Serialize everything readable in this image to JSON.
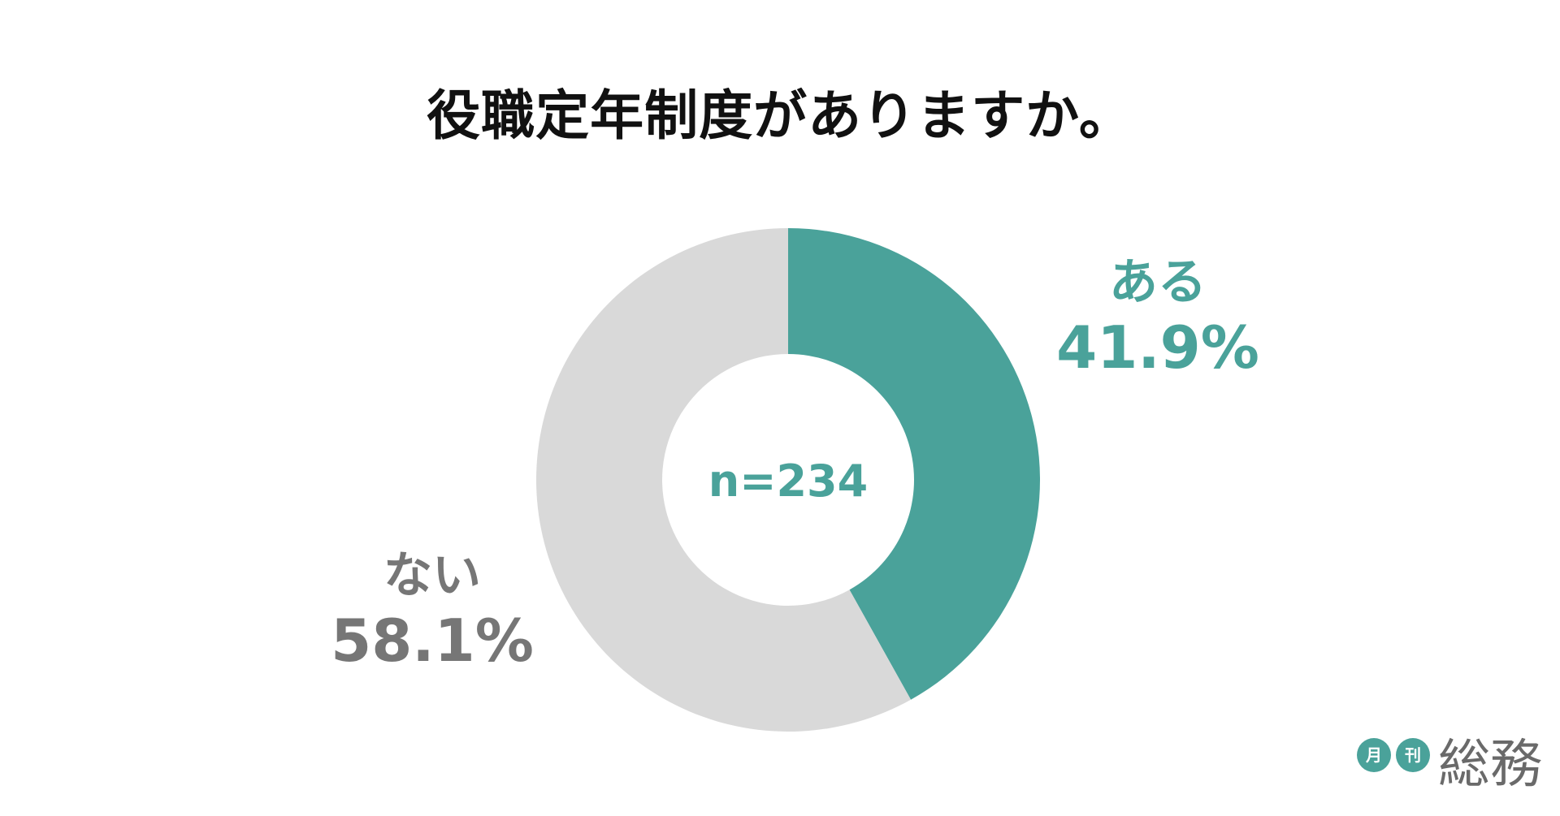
{
  "chart_data": {
    "type": "pie",
    "donut": true,
    "title": "役職定年制度がありますか。",
    "center_label": "n=234",
    "start": "top",
    "direction": "clockwise",
    "slices": [
      {
        "label": "ある",
        "value": 41.9,
        "display": "41.9%",
        "color": "#4aa29a",
        "label_color": "#4aa29a"
      },
      {
        "label": "ない",
        "value": 58.1,
        "display": "58.1%",
        "color": "#d9d9d9",
        "label_color": "#767676"
      }
    ]
  },
  "logo": {
    "badge_1": "月",
    "badge_2": "刊",
    "name": "総務",
    "badge_color": "#4aa29a"
  }
}
